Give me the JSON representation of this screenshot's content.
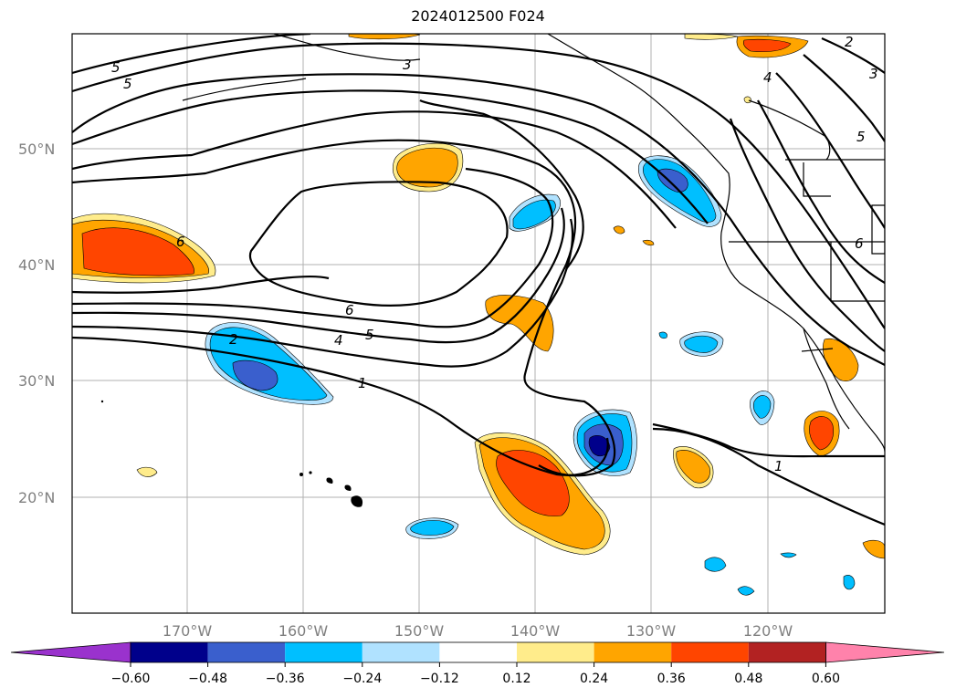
{
  "title": "2024012500 F024",
  "latitude_labels": [
    "50°N",
    "40°N",
    "30°N",
    "20°N"
  ],
  "longitude_labels": [
    "170°W",
    "160°W",
    "150°W",
    "140°W",
    "130°W",
    "120°W"
  ],
  "contour_labels": [
    "5",
    "5",
    "3",
    "2",
    "3",
    "4",
    "5",
    "6",
    "6",
    "6",
    "2",
    "4",
    "5",
    "1",
    "1"
  ],
  "colorbar": {
    "ticks": [
      "−0.60",
      "−0.48",
      "−0.36",
      "−0.24",
      "−0.12",
      "0.12",
      "0.24",
      "0.36",
      "0.48",
      "0.60"
    ],
    "colors": [
      "#9a32cd",
      "#00008b",
      "#3a5fcd",
      "#00bfff",
      "#b0e2ff",
      "#ffffff",
      "#ffec8b",
      "#ffa500",
      "#ff4500",
      "#b22222",
      "#ff82ab"
    ]
  },
  "fill_colors": {
    "pos_light": "#ffec8b",
    "pos_mid": "#ffa500",
    "pos_strong": "#ff4500",
    "neg_light": "#b0e2ff",
    "neg_mid": "#00bfff",
    "neg_strong": "#3a5fcd",
    "neg_extreme": "#00008b"
  }
}
